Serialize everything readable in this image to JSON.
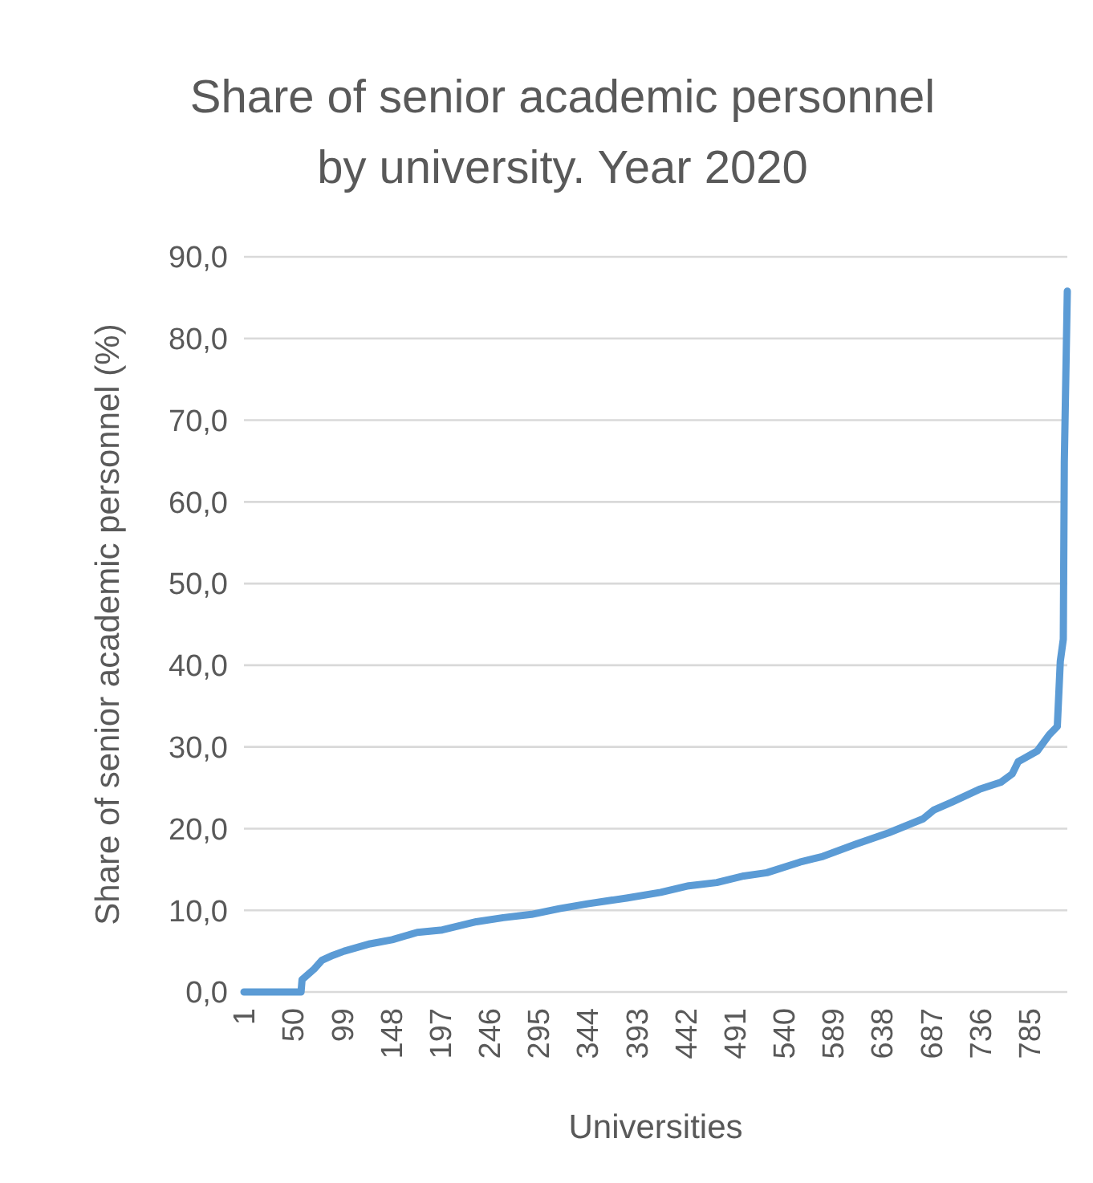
{
  "chart_data": {
    "type": "line",
    "title": "Share of senior academic personnel by university. Year 2020",
    "xlabel": "Universities",
    "ylabel": "Share of senior academic personnel (%)",
    "xlim": [
      1,
      823
    ],
    "xticks": [
      1,
      50,
      99,
      148,
      197,
      246,
      295,
      344,
      393,
      442,
      491,
      540,
      589,
      638,
      687,
      736,
      785
    ],
    "ylim": [
      0,
      90
    ],
    "yticks": [
      {
        "value": 0,
        "label": "0,0"
      },
      {
        "value": 10,
        "label": "10,0"
      },
      {
        "value": 20,
        "label": "20,0"
      },
      {
        "value": 30,
        "label": "30,0"
      },
      {
        "value": 40,
        "label": "40,0"
      },
      {
        "value": 50,
        "label": "50,0"
      },
      {
        "value": 60,
        "label": "60,0"
      },
      {
        "value": 70,
        "label": "70,0"
      },
      {
        "value": 80,
        "label": "80,0"
      },
      {
        "value": 90,
        "label": "90,0"
      }
    ],
    "grid": "y",
    "marker": "none",
    "line_style": "solid",
    "series": [
      {
        "color": "#5b9bd5",
        "x": [
          1,
          58,
          59,
          71,
          79,
          90,
          101,
          127,
          149,
          174,
          199,
          233,
          260,
          288,
          316,
          344,
          383,
          417,
          445,
          473,
          500,
          523,
          556,
          579,
          612,
          645,
          679,
          690,
          707,
          735,
          757,
          768,
          774,
          793,
          805,
          813,
          816,
          819,
          820,
          823
        ],
        "values": [
          0,
          0,
          1.5,
          2.8,
          3.9,
          4.5,
          5.0,
          5.9,
          6.4,
          7.3,
          7.6,
          8.6,
          9.1,
          9.5,
          10.2,
          10.8,
          11.5,
          12.2,
          13.0,
          13.4,
          14.2,
          14.6,
          15.9,
          16.6,
          18.1,
          19.5,
          21.2,
          22.3,
          23.2,
          24.8,
          25.7,
          26.7,
          28.2,
          29.5,
          31.5,
          32.5,
          40.5,
          43.2,
          64.9,
          85.8
        ]
      }
    ]
  }
}
